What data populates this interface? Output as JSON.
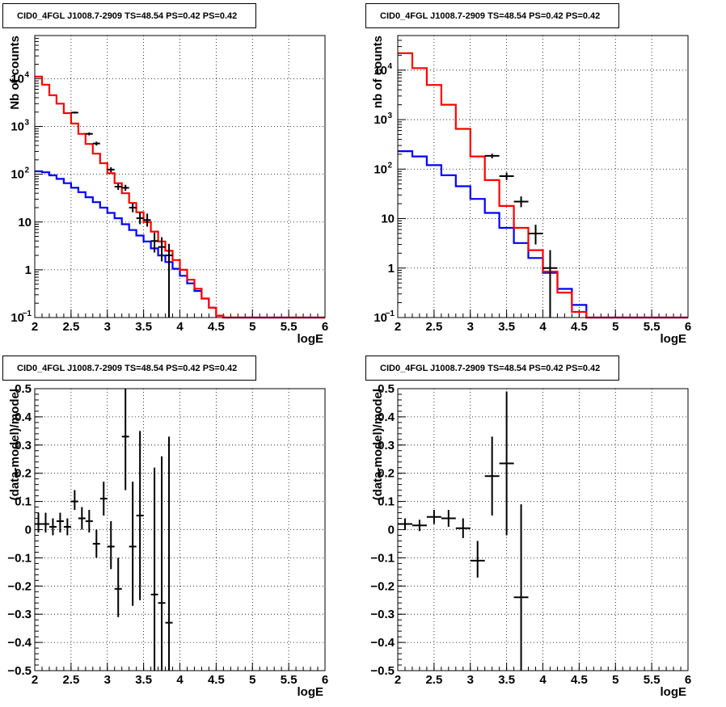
{
  "chart_data": [
    {
      "type": "line",
      "title": "CID0_4FGL J1008.7-2909 TS=48.54 PS=0.42 PS=0.42",
      "xlabel": "logE",
      "ylabel": "Nb of counts",
      "xlim": [
        2,
        6
      ],
      "ylim": [
        0.1,
        80000
      ],
      "yscale": "log",
      "grid": true,
      "x_ticks": [
        "2",
        "2.5",
        "3",
        "3.5",
        "4",
        "4.5",
        "5",
        "5.5",
        "6"
      ],
      "y_ticks": [
        {
          "value": 0.1,
          "mant": "10",
          "exp": "−1"
        },
        {
          "value": 1,
          "mant": "1",
          "exp": ""
        },
        {
          "value": 10,
          "mant": "10",
          "exp": ""
        },
        {
          "value": 100,
          "mant": "10",
          "exp": "2"
        },
        {
          "value": 1000,
          "mant": "10",
          "exp": "3"
        },
        {
          "value": 10000,
          "mant": "10",
          "exp": "4"
        }
      ],
      "bin_edges": [
        2.0,
        2.1,
        2.2,
        2.3,
        2.4,
        2.5,
        2.6,
        2.7,
        2.8,
        2.9,
        3.0,
        3.1,
        3.2,
        3.3,
        3.4,
        3.5,
        3.6,
        3.7,
        3.8,
        3.9,
        4.0,
        4.1,
        4.2,
        4.3,
        4.4,
        4.5,
        4.6,
        4.7,
        4.8,
        4.9,
        5.0,
        5.1,
        5.2,
        5.3,
        5.4,
        5.5,
        5.6,
        5.7,
        5.8,
        5.9,
        6.0
      ],
      "series": [
        {
          "color": "#ff0000",
          "values": [
            11000,
            7500,
            4500,
            3000,
            1900,
            1150,
            700,
            430,
            270,
            170,
            105,
            65,
            40,
            25,
            16,
            10,
            6.3,
            3.9,
            2.5,
            1.6,
            1.0,
            0.62,
            0.4,
            0.25,
            0.16,
            0.11,
            0.1,
            0.1,
            0.1,
            0.1,
            0.1,
            0.1,
            0.1,
            0.1,
            0.1,
            0.1,
            0.1,
            0.1,
            0.1,
            0.1
          ]
        },
        {
          "color": "#0000ff",
          "values": [
            115,
            110,
            95,
            80,
            65,
            52,
            42,
            33,
            26,
            20,
            15.5,
            12,
            9,
            6.8,
            5.2,
            3.9,
            2.8,
            2.0,
            1.45,
            1.05,
            0.75,
            0.52,
            0.36,
            0.25,
            0.16,
            0.11,
            0.1,
            0.1,
            0.1,
            0.1,
            0.1,
            0.1,
            0.1,
            0.1,
            0.1,
            0.1,
            0.1,
            0.1,
            0.1,
            0.1
          ]
        }
      ],
      "data_points": [
        {
          "x": 2.55,
          "y": 1950,
          "ylo": 1860,
          "yhi": 2040,
          "xerr": 0.05
        },
        {
          "x": 2.75,
          "y": 700,
          "ylo": 650,
          "yhi": 750,
          "xerr": 0.05
        },
        {
          "x": 2.85,
          "y": 440,
          "ylo": 400,
          "yhi": 480,
          "xerr": 0.05
        },
        {
          "x": 3.05,
          "y": 125,
          "ylo": 110,
          "yhi": 140,
          "xerr": 0.05
        },
        {
          "x": 3.15,
          "y": 55,
          "ylo": 47,
          "yhi": 63,
          "xerr": 0.05
        },
        {
          "x": 3.25,
          "y": 52,
          "ylo": 45,
          "yhi": 60,
          "xerr": 0.05
        },
        {
          "x": 3.35,
          "y": 20,
          "ylo": 16,
          "yhi": 25,
          "xerr": 0.05
        },
        {
          "x": 3.45,
          "y": 12,
          "ylo": 9,
          "yhi": 16,
          "xerr": 0.05
        },
        {
          "x": 3.55,
          "y": 11,
          "ylo": 8,
          "yhi": 15,
          "xerr": 0.05
        },
        {
          "x": 3.65,
          "y": 4,
          "ylo": 2.3,
          "yhi": 6,
          "xerr": 0.05
        },
        {
          "x": 3.75,
          "y": 3,
          "ylo": 1.5,
          "yhi": 4.8,
          "xerr": 0.05
        },
        {
          "x": 3.85,
          "y": 2,
          "ylo": 0.1,
          "yhi": 3.5,
          "xerr": 0.05
        }
      ]
    },
    {
      "type": "line",
      "title": "CID0_4FGL J1008.7-2909 TS=48.54 PS=0.42 PS=0.42",
      "xlabel": "logE",
      "ylabel": "nb of counts",
      "xlim": [
        2,
        6
      ],
      "ylim": [
        0.1,
        50000
      ],
      "yscale": "log",
      "grid": true,
      "x_ticks": [
        "2",
        "2.5",
        "3",
        "3.5",
        "4",
        "4.5",
        "5",
        "5.5",
        "6"
      ],
      "y_ticks": [
        {
          "value": 0.1,
          "mant": "10",
          "exp": "−1"
        },
        {
          "value": 1,
          "mant": "1",
          "exp": ""
        },
        {
          "value": 10,
          "mant": "10",
          "exp": ""
        },
        {
          "value": 100,
          "mant": "10",
          "exp": "2"
        },
        {
          "value": 1000,
          "mant": "10",
          "exp": "3"
        },
        {
          "value": 10000,
          "mant": "10",
          "exp": "4"
        }
      ],
      "bin_edges": [
        2.0,
        2.2,
        2.4,
        2.6,
        2.8,
        3.0,
        3.2,
        3.4,
        3.6,
        3.8,
        4.0,
        4.2,
        4.4,
        4.6,
        4.8,
        5.0,
        5.2,
        5.4,
        5.6,
        5.8,
        6.0
      ],
      "series": [
        {
          "color": "#ff0000",
          "values": [
            22000,
            11000,
            5000,
            2000,
            650,
            180,
            60,
            18,
            6.5,
            2.3,
            0.85,
            0.32,
            0.13,
            0.1,
            0.1,
            0.1,
            0.1,
            0.1,
            0.1,
            0.1
          ]
        },
        {
          "color": "#0000ff",
          "values": [
            230,
            180,
            120,
            75,
            45,
            25,
            13,
            6.5,
            3.2,
            1.6,
            0.8,
            0.38,
            0.18,
            0.1,
            0.1,
            0.1,
            0.1,
            0.1,
            0.1,
            0.1
          ]
        }
      ],
      "data_points": [
        {
          "x": 3.3,
          "y": 185,
          "ylo": 165,
          "yhi": 205,
          "xerr": 0.1
        },
        {
          "x": 3.5,
          "y": 72,
          "ylo": 60,
          "yhi": 85,
          "xerr": 0.1
        },
        {
          "x": 3.7,
          "y": 22,
          "ylo": 17,
          "yhi": 28,
          "xerr": 0.1
        },
        {
          "x": 3.9,
          "y": 5,
          "ylo": 3,
          "yhi": 7.5,
          "xerr": 0.1
        },
        {
          "x": 4.1,
          "y": 1,
          "ylo": 0.1,
          "yhi": 2.3,
          "xerr": 0.1
        }
      ]
    },
    {
      "type": "scatter",
      "title": "CID0_4FGL J1008.7-2909 TS=48.54 PS=0.42 PS=0.42",
      "xlabel": "logE",
      "ylabel": "(data-model)/model",
      "xlim": [
        2,
        6
      ],
      "ylim": [
        -0.5,
        0.5
      ],
      "grid": true,
      "x_ticks": [
        "2",
        "2.5",
        "3",
        "3.5",
        "4",
        "4.5",
        "5",
        "5.5",
        "6"
      ],
      "y_ticks": [
        "−0.5",
        "−0.4",
        "−0.3",
        "−0.2",
        "−0.1",
        "0",
        "0.1",
        "0.2",
        "0.3",
        "0.4",
        "0.5"
      ],
      "points": [
        {
          "x": 2.05,
          "y": 0.02,
          "ylo": -0.01,
          "yhi": 0.06
        },
        {
          "x": 2.15,
          "y": 0.02,
          "ylo": -0.01,
          "yhi": 0.06
        },
        {
          "x": 2.25,
          "y": 0.01,
          "ylo": -0.02,
          "yhi": 0.04
        },
        {
          "x": 2.35,
          "y": 0.03,
          "ylo": -0.01,
          "yhi": 0.06
        },
        {
          "x": 2.45,
          "y": 0.01,
          "ylo": -0.02,
          "yhi": 0.04
        },
        {
          "x": 2.55,
          "y": 0.1,
          "ylo": 0.07,
          "yhi": 0.14
        },
        {
          "x": 2.65,
          "y": 0.04,
          "ylo": 0.0,
          "yhi": 0.08
        },
        {
          "x": 2.75,
          "y": 0.03,
          "ylo": -0.01,
          "yhi": 0.07
        },
        {
          "x": 2.85,
          "y": -0.05,
          "ylo": -0.1,
          "yhi": 0.0
        },
        {
          "x": 2.95,
          "y": 0.11,
          "ylo": 0.05,
          "yhi": 0.17
        },
        {
          "x": 3.05,
          "y": -0.06,
          "ylo": -0.14,
          "yhi": 0.03
        },
        {
          "x": 3.15,
          "y": -0.21,
          "ylo": -0.31,
          "yhi": -0.1
        },
        {
          "x": 3.25,
          "y": 0.33,
          "ylo": 0.14,
          "yhi": 0.5
        },
        {
          "x": 3.35,
          "y": -0.06,
          "ylo": -0.27,
          "yhi": 0.17
        },
        {
          "x": 3.45,
          "y": 0.05,
          "ylo": -0.25,
          "yhi": 0.35
        },
        {
          "x": 3.65,
          "y": -0.23,
          "ylo": -0.5,
          "yhi": 0.22
        },
        {
          "x": 3.75,
          "y": -0.26,
          "ylo": -0.5,
          "yhi": 0.26
        },
        {
          "x": 3.85,
          "y": -0.33,
          "ylo": -0.5,
          "yhi": 0.33
        }
      ]
    },
    {
      "type": "scatter",
      "title": "CID0_4FGL J1008.7-2909 TS=48.54 PS=0.42 PS=0.42",
      "xlabel": "logE",
      "ylabel": "(data-model)/model",
      "xlim": [
        2,
        6
      ],
      "ylim": [
        -0.5,
        0.5
      ],
      "grid": true,
      "x_ticks": [
        "2",
        "2.5",
        "3",
        "3.5",
        "4",
        "4.5",
        "5",
        "5.5",
        "6"
      ],
      "y_ticks": [
        "−0.5",
        "−0.4",
        "−0.3",
        "−0.2",
        "−0.1",
        "0",
        "0.1",
        "0.2",
        "0.3",
        "0.4",
        "0.5"
      ],
      "points": [
        {
          "x": 2.1,
          "y": 0.02,
          "ylo": 0.0,
          "yhi": 0.04
        },
        {
          "x": 2.3,
          "y": 0.015,
          "ylo": -0.005,
          "yhi": 0.035
        },
        {
          "x": 2.5,
          "y": 0.045,
          "ylo": 0.02,
          "yhi": 0.07
        },
        {
          "x": 2.7,
          "y": 0.04,
          "ylo": 0.01,
          "yhi": 0.07
        },
        {
          "x": 2.9,
          "y": 0.005,
          "ylo": -0.03,
          "yhi": 0.04
        },
        {
          "x": 3.1,
          "y": -0.11,
          "ylo": -0.17,
          "yhi": -0.04
        },
        {
          "x": 3.3,
          "y": 0.19,
          "ylo": 0.05,
          "yhi": 0.33
        },
        {
          "x": 3.5,
          "y": 0.235,
          "ylo": -0.02,
          "yhi": 0.49
        },
        {
          "x": 3.7,
          "y": -0.24,
          "ylo": -0.5,
          "yhi": 0.09
        }
      ]
    }
  ]
}
